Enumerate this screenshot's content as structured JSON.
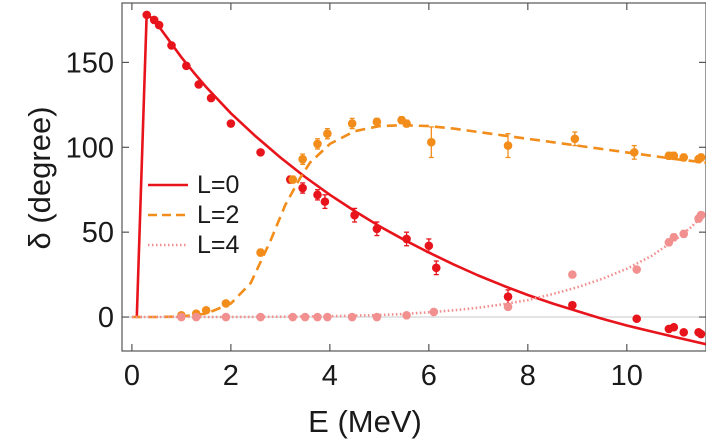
{
  "chart_data": {
    "type": "line",
    "title": "",
    "xlabel": "E (MeV)",
    "ylabel": "δ (degree)",
    "xlim": [
      -0.2,
      11.6
    ],
    "ylim": [
      -20,
      185
    ],
    "xticks": [
      0,
      2,
      4,
      6,
      8,
      10
    ],
    "yticks": [
      0,
      50,
      100,
      150
    ],
    "zero_line": true,
    "legend_position": "middle-left",
    "series": [
      {
        "name": "L=0",
        "style": "solid",
        "color": "#e8141b",
        "curve": [
          [
            0.1,
            0
          ],
          [
            0.3,
            179
          ],
          [
            0.5,
            173
          ],
          [
            0.75,
            163
          ],
          [
            1.0,
            153
          ],
          [
            1.25,
            144
          ],
          [
            1.5,
            135.5
          ],
          [
            2.0,
            120
          ],
          [
            2.5,
            106.5
          ],
          [
            3.0,
            94
          ],
          [
            3.5,
            82.5
          ],
          [
            4.0,
            72
          ],
          [
            4.5,
            62.5
          ],
          [
            5.0,
            53.5
          ],
          [
            5.5,
            45.5
          ],
          [
            6.0,
            38
          ],
          [
            6.5,
            31
          ],
          [
            7.0,
            24.5
          ],
          [
            7.5,
            18.5
          ],
          [
            8.0,
            13
          ],
          [
            8.5,
            8
          ],
          [
            9.0,
            3.5
          ],
          [
            9.5,
            -1
          ],
          [
            10.0,
            -5
          ],
          [
            10.5,
            -8.5
          ],
          [
            11.0,
            -12
          ],
          [
            11.6,
            -16
          ]
        ],
        "points": [
          {
            "x": 0.3,
            "y": 178,
            "err": 1.5
          },
          {
            "x": 0.45,
            "y": 175,
            "err": 1.5
          },
          {
            "x": 0.55,
            "y": 172,
            "err": 1.5
          },
          {
            "x": 0.8,
            "y": 160,
            "err": 1.5
          },
          {
            "x": 1.1,
            "y": 148,
            "err": 1.5
          },
          {
            "x": 1.35,
            "y": 137,
            "err": 1.5
          },
          {
            "x": 1.6,
            "y": 129,
            "err": 1.5
          },
          {
            "x": 2.0,
            "y": 114,
            "err": 1.5
          },
          {
            "x": 2.6,
            "y": 97,
            "err": 1.5
          },
          {
            "x": 3.2,
            "y": 81,
            "err": 2
          },
          {
            "x": 3.45,
            "y": 76,
            "err": 3
          },
          {
            "x": 3.75,
            "y": 72,
            "err": 3
          },
          {
            "x": 3.9,
            "y": 68,
            "err": 4
          },
          {
            "x": 4.5,
            "y": 60,
            "err": 4
          },
          {
            "x": 4.95,
            "y": 52,
            "err": 4
          },
          {
            "x": 5.55,
            "y": 46,
            "err": 4
          },
          {
            "x": 6.0,
            "y": 42,
            "err": 4
          },
          {
            "x": 6.15,
            "y": 29,
            "err": 4
          },
          {
            "x": 7.6,
            "y": 12,
            "err": 4
          },
          {
            "x": 8.9,
            "y": 7,
            "err": 1.5
          },
          {
            "x": 10.2,
            "y": -1,
            "err": 1.5
          },
          {
            "x": 10.85,
            "y": -7,
            "err": 1.5
          },
          {
            "x": 10.95,
            "y": -6,
            "err": 1.5
          },
          {
            "x": 11.15,
            "y": -9,
            "err": 1.5
          },
          {
            "x": 11.45,
            "y": -9,
            "err": 1.5
          },
          {
            "x": 11.5,
            "y": -10,
            "err": 1.5
          }
        ]
      },
      {
        "name": "L=2",
        "style": "dashed",
        "color": "#f28c1a",
        "curve": [
          [
            0.0,
            0
          ],
          [
            0.5,
            0
          ],
          [
            1.0,
            0.3
          ],
          [
            1.5,
            2
          ],
          [
            2.0,
            8
          ],
          [
            2.4,
            20
          ],
          [
            2.8,
            45
          ],
          [
            3.1,
            66
          ],
          [
            3.4,
            82
          ],
          [
            3.6,
            91
          ],
          [
            4.0,
            102
          ],
          [
            4.5,
            109.5
          ],
          [
            5.0,
            112.5
          ],
          [
            5.5,
            113
          ],
          [
            6.0,
            112.5
          ],
          [
            6.5,
            111
          ],
          [
            7.0,
            109
          ],
          [
            7.5,
            107
          ],
          [
            8.0,
            105
          ],
          [
            8.5,
            103
          ],
          [
            9.0,
            101
          ],
          [
            9.5,
            99
          ],
          [
            10.0,
            97
          ],
          [
            10.5,
            95
          ],
          [
            11.0,
            93
          ],
          [
            11.6,
            91
          ]
        ],
        "points": [
          {
            "x": 1.0,
            "y": 1,
            "err": 1
          },
          {
            "x": 1.3,
            "y": 2,
            "err": 1
          },
          {
            "x": 1.5,
            "y": 4,
            "err": 1
          },
          {
            "x": 1.9,
            "y": 8,
            "err": 1
          },
          {
            "x": 2.6,
            "y": 38,
            "err": 2
          },
          {
            "x": 3.25,
            "y": 81,
            "err": 2
          },
          {
            "x": 3.45,
            "y": 93,
            "err": 3
          },
          {
            "x": 3.75,
            "y": 102,
            "err": 3
          },
          {
            "x": 3.95,
            "y": 108,
            "err": 3
          },
          {
            "x": 4.45,
            "y": 114,
            "err": 3
          },
          {
            "x": 4.95,
            "y": 115,
            "err": 2
          },
          {
            "x": 5.45,
            "y": 116,
            "err": 2
          },
          {
            "x": 5.55,
            "y": 114,
            "err": 2
          },
          {
            "x": 6.05,
            "y": 103,
            "err": 9
          },
          {
            "x": 7.6,
            "y": 101,
            "err": 7
          },
          {
            "x": 8.95,
            "y": 105,
            "err": 4
          },
          {
            "x": 10.15,
            "y": 97,
            "err": 4
          },
          {
            "x": 10.85,
            "y": 95,
            "err": 2
          },
          {
            "x": 10.95,
            "y": 95,
            "err": 2
          },
          {
            "x": 11.15,
            "y": 94,
            "err": 2
          },
          {
            "x": 11.45,
            "y": 93,
            "err": 2
          },
          {
            "x": 11.5,
            "y": 94,
            "err": 2
          }
        ]
      },
      {
        "name": "L=4",
        "style": "dotted",
        "color": "#f29090",
        "curve": [
          [
            0.0,
            0
          ],
          [
            1.0,
            0
          ],
          [
            2.0,
            0
          ],
          [
            3.0,
            0.2
          ],
          [
            4.0,
            0.5
          ],
          [
            5.0,
            1.2
          ],
          [
            5.5,
            1.8
          ],
          [
            6.0,
            2.8
          ],
          [
            6.5,
            4
          ],
          [
            7.0,
            5.5
          ],
          [
            7.5,
            7.5
          ],
          [
            8.0,
            10
          ],
          [
            8.5,
            13.5
          ],
          [
            9.0,
            17.5
          ],
          [
            9.5,
            22.5
          ],
          [
            10.0,
            28.5
          ],
          [
            10.5,
            36
          ],
          [
            11.0,
            46
          ],
          [
            11.3,
            53
          ],
          [
            11.6,
            62
          ]
        ],
        "points": [
          {
            "x": 1.0,
            "y": 0,
            "err": 1
          },
          {
            "x": 1.3,
            "y": 0,
            "err": 1
          },
          {
            "x": 1.9,
            "y": 0,
            "err": 1
          },
          {
            "x": 2.6,
            "y": 0,
            "err": 1
          },
          {
            "x": 3.25,
            "y": 0,
            "err": 1
          },
          {
            "x": 3.5,
            "y": 0,
            "err": 1
          },
          {
            "x": 3.75,
            "y": 0,
            "err": 1
          },
          {
            "x": 3.95,
            "y": 0,
            "err": 1
          },
          {
            "x": 4.45,
            "y": 0,
            "err": 1
          },
          {
            "x": 4.95,
            "y": 0,
            "err": 1
          },
          {
            "x": 5.55,
            "y": 1,
            "err": 1
          },
          {
            "x": 6.1,
            "y": 3,
            "err": 1
          },
          {
            "x": 7.6,
            "y": 6,
            "err": 1
          },
          {
            "x": 8.9,
            "y": 25,
            "err": 1
          },
          {
            "x": 10.2,
            "y": 28,
            "err": 1
          },
          {
            "x": 10.85,
            "y": 44,
            "err": 2
          },
          {
            "x": 10.95,
            "y": 47,
            "err": 2
          },
          {
            "x": 11.15,
            "y": 49,
            "err": 2
          },
          {
            "x": 11.45,
            "y": 58,
            "err": 2
          },
          {
            "x": 11.5,
            "y": 60,
            "err": 2
          }
        ]
      }
    ]
  }
}
